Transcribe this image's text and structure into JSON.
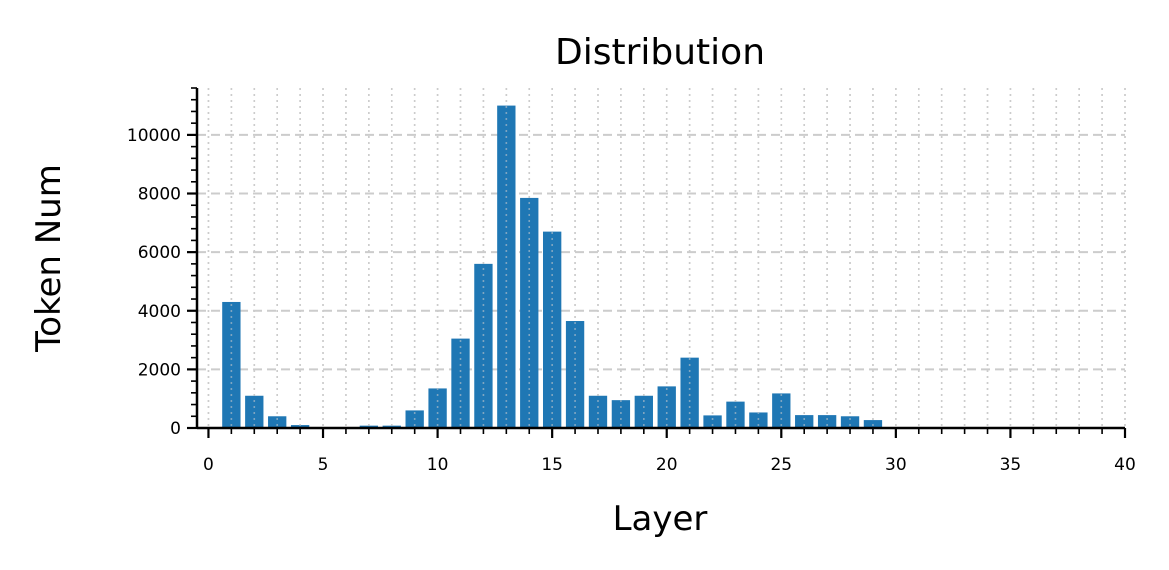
{
  "chart_data": {
    "type": "bar",
    "title": "Distribution",
    "xlabel": "Layer",
    "ylabel": "Token Num",
    "xlim": [
      -0.5,
      40
    ],
    "ylim": [
      0,
      11600
    ],
    "xticks": [
      0,
      5,
      10,
      15,
      20,
      25,
      30,
      35,
      40
    ],
    "yticks": [
      0,
      2000,
      4000,
      6000,
      8000,
      10000
    ],
    "x": [
      1,
      2,
      3,
      4,
      5,
      6,
      7,
      8,
      9,
      10,
      11,
      12,
      13,
      14,
      15,
      16,
      17,
      18,
      19,
      20,
      21,
      22,
      23,
      24,
      25,
      26,
      27,
      28,
      29
    ],
    "values": [
      4300,
      1100,
      400,
      100,
      0,
      0,
      80,
      80,
      600,
      1350,
      3050,
      5600,
      11000,
      7850,
      6700,
      3650,
      1100,
      950,
      1100,
      1420,
      2400,
      430,
      900,
      530,
      1180,
      440,
      440,
      400,
      270
    ],
    "grid": "on",
    "legend": "none",
    "bar_color": "#1f77b4",
    "grid_color": "#cccccc"
  }
}
